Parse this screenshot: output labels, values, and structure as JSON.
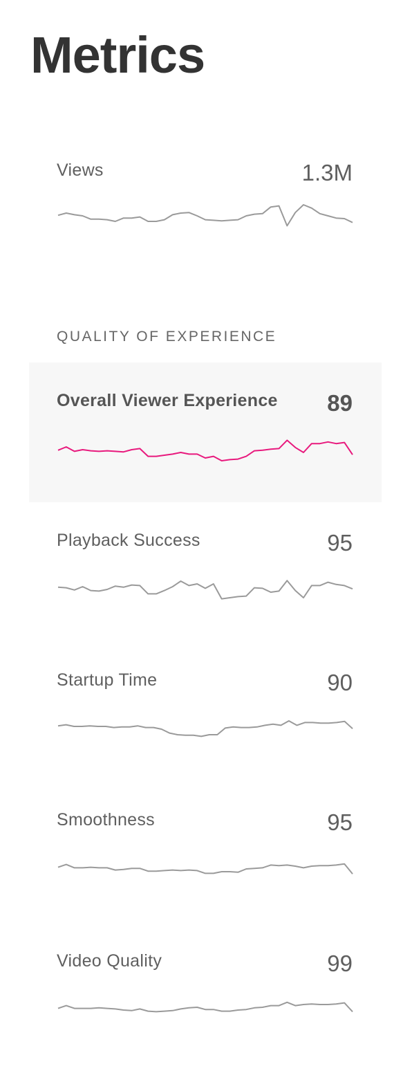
{
  "page": {
    "title": "Metrics"
  },
  "views": {
    "label": "Views",
    "value": "1.3M",
    "trend": [
      51,
      55,
      52,
      50,
      44,
      44,
      43,
      40,
      46,
      46,
      48,
      40,
      40,
      43,
      52,
      55,
      56,
      50,
      43,
      42,
      41,
      42,
      43,
      50,
      53,
      54,
      66,
      68,
      32,
      56,
      70,
      64,
      54,
      50,
      46,
      45,
      38
    ]
  },
  "quality_section": {
    "heading": "QUALITY OF EXPERIENCE"
  },
  "qoe_metrics": [
    {
      "id": "overall",
      "label": "Overall Viewer Experience",
      "value": "89",
      "highlighted": true,
      "line_color": "#e8197d",
      "trend": [
        44,
        50,
        42,
        45,
        43,
        42,
        43,
        42,
        41,
        45,
        47,
        33,
        33,
        35,
        37,
        40,
        37,
        37,
        30,
        33,
        25,
        27,
        28,
        33,
        43,
        44,
        46,
        47,
        62,
        49,
        40,
        56,
        56,
        59,
        56,
        58,
        36
      ]
    },
    {
      "id": "playback-success",
      "label": "Playback Success",
      "value": "95",
      "highlighted": false,
      "line_color": "#9a9a9a",
      "trend": [
        49,
        48,
        44,
        50,
        43,
        42,
        45,
        51,
        49,
        53,
        52,
        37,
        37,
        43,
        50,
        60,
        52,
        55,
        47,
        55,
        28,
        30,
        32,
        33,
        48,
        47,
        40,
        42,
        61,
        43,
        30,
        52,
        52,
        58,
        54,
        52,
        46
      ]
    },
    {
      "id": "startup-time",
      "label": "Startup Time",
      "value": "90",
      "highlighted": false,
      "line_color": "#9a9a9a",
      "trend": [
        51,
        53,
        50,
        50,
        51,
        50,
        50,
        48,
        49,
        49,
        51,
        48,
        48,
        45,
        38,
        35,
        34,
        34,
        32,
        35,
        35,
        47,
        49,
        48,
        48,
        49,
        52,
        54,
        52,
        60,
        52,
        57,
        57,
        56,
        56,
        57,
        59,
        46
      ]
    },
    {
      "id": "smoothness",
      "label": "Smoothness",
      "value": "95",
      "highlighted": false,
      "line_color": "#9a9a9a",
      "trend": [
        48,
        53,
        47,
        47,
        48,
        47,
        47,
        43,
        44,
        46,
        46,
        41,
        41,
        42,
        43,
        42,
        43,
        42,
        37,
        37,
        40,
        40,
        39,
        45,
        46,
        47,
        52,
        51,
        52,
        50,
        47,
        50,
        51,
        51,
        52,
        54,
        36
      ]
    },
    {
      "id": "video-quality",
      "label": "Video Quality",
      "value": "99",
      "highlighted": false,
      "line_color": "#9a9a9a",
      "trend": [
        48,
        53,
        48,
        48,
        48,
        49,
        48,
        47,
        45,
        44,
        47,
        43,
        42,
        43,
        44,
        47,
        49,
        50,
        46,
        46,
        43,
        43,
        45,
        46,
        49,
        50,
        53,
        53,
        59,
        53,
        55,
        56,
        55,
        55,
        56,
        58,
        42
      ]
    }
  ]
}
